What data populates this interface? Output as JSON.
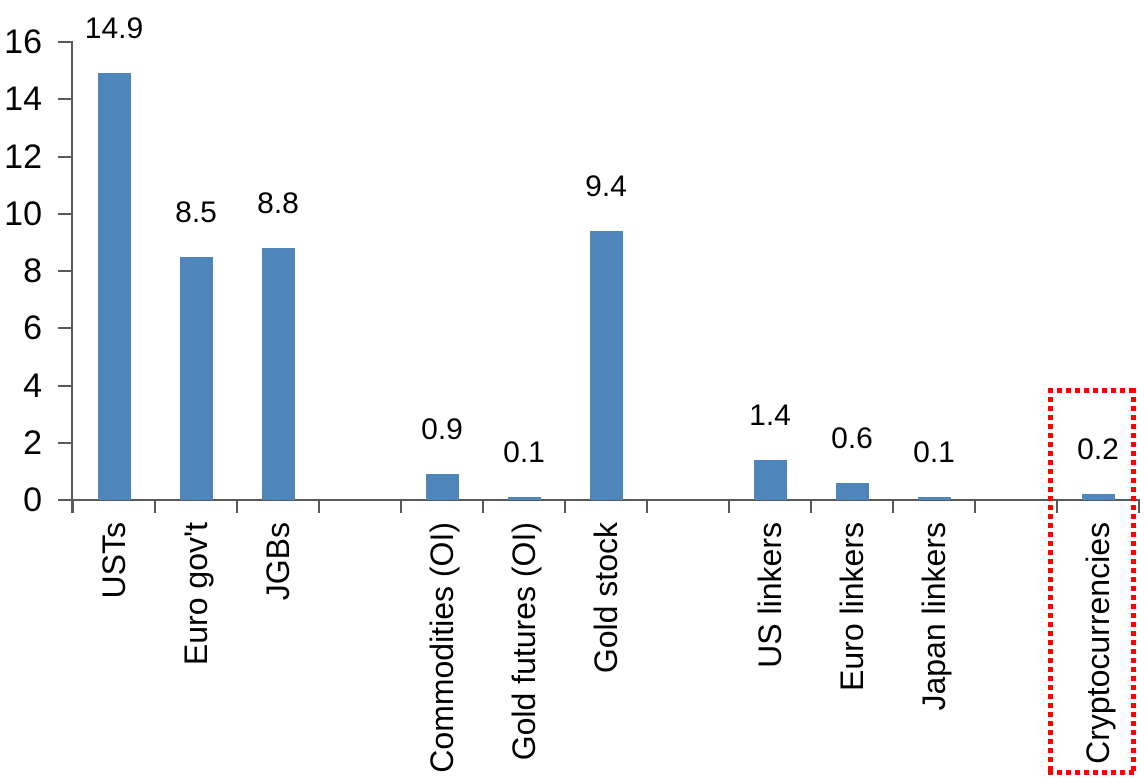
{
  "chart_data": {
    "type": "bar",
    "title": "",
    "xlabel": "",
    "ylabel": "",
    "categories": [
      "USTs",
      "Euro gov't",
      "JGBs",
      "Commodities (OI)",
      "Gold futures (OI)",
      "Gold stock",
      "US linkers",
      "Euro linkers",
      "Japan linkers",
      "Cryptocurrencies"
    ],
    "values": [
      14.9,
      8.5,
      8.8,
      0.9,
      0.1,
      9.4,
      1.4,
      0.6,
      0.1,
      0.2
    ],
    "data_labels": [
      "14.9",
      "8.5",
      "8.8",
      "0.9",
      "0.1",
      "9.4",
      "1.4",
      "0.6",
      "0.1",
      "0.2"
    ],
    "yticks": [
      0,
      2,
      4,
      6,
      8,
      10,
      12,
      14,
      16
    ],
    "ylim": [
      0,
      16
    ],
    "grid": false,
    "legend": false,
    "gap_after_indices": [
      2,
      5,
      8
    ],
    "bar_color": "#4E86BC",
    "axis_color": "#595959",
    "text_color": "#000000",
    "highlight": {
      "category": "Cryptocurrencies",
      "style": "dotted-box",
      "color": "#FF0000"
    }
  }
}
